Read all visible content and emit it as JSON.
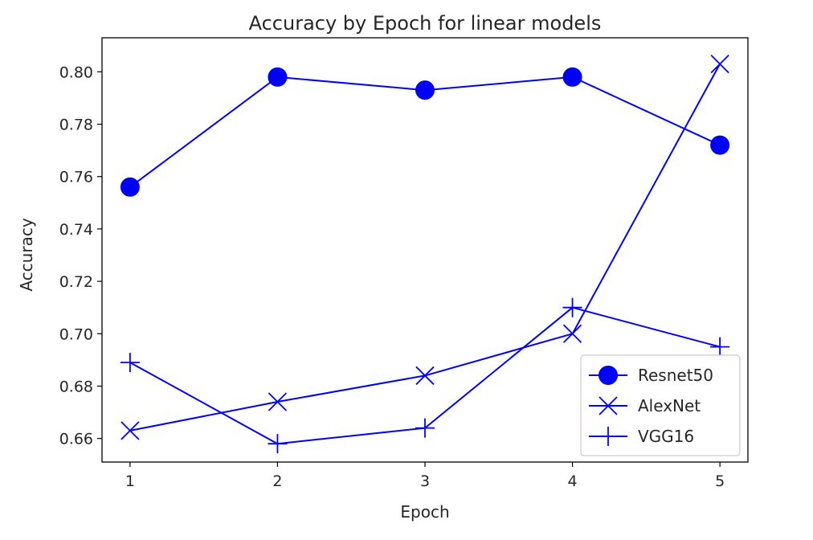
{
  "chart_data": {
    "type": "line",
    "title": "Accuracy by Epoch for linear models",
    "xlabel": "Epoch",
    "ylabel": "Accuracy",
    "x": [
      1,
      2,
      3,
      4,
      5
    ],
    "xlim": [
      0.81,
      5.19
    ],
    "ylim": [
      0.651,
      0.813
    ],
    "xticks": [
      "1",
      "2",
      "3",
      "4",
      "5"
    ],
    "yticks": [
      "0.66",
      "0.68",
      "0.70",
      "0.72",
      "0.74",
      "0.76",
      "0.78",
      "0.80"
    ],
    "grid": false,
    "legend_position": "lower-right",
    "series": [
      {
        "name": "Resnet50",
        "marker": "circle",
        "color": "#0000ff",
        "values": [
          0.756,
          0.798,
          0.793,
          0.798,
          0.772
        ]
      },
      {
        "name": "AlexNet",
        "marker": "x",
        "color": "#0000ff",
        "values": [
          0.663,
          0.674,
          0.684,
          0.7,
          0.803
        ]
      },
      {
        "name": "VGG16",
        "marker": "plus",
        "color": "#0000ff",
        "values": [
          0.689,
          0.658,
          0.664,
          0.71,
          0.695
        ]
      }
    ]
  }
}
